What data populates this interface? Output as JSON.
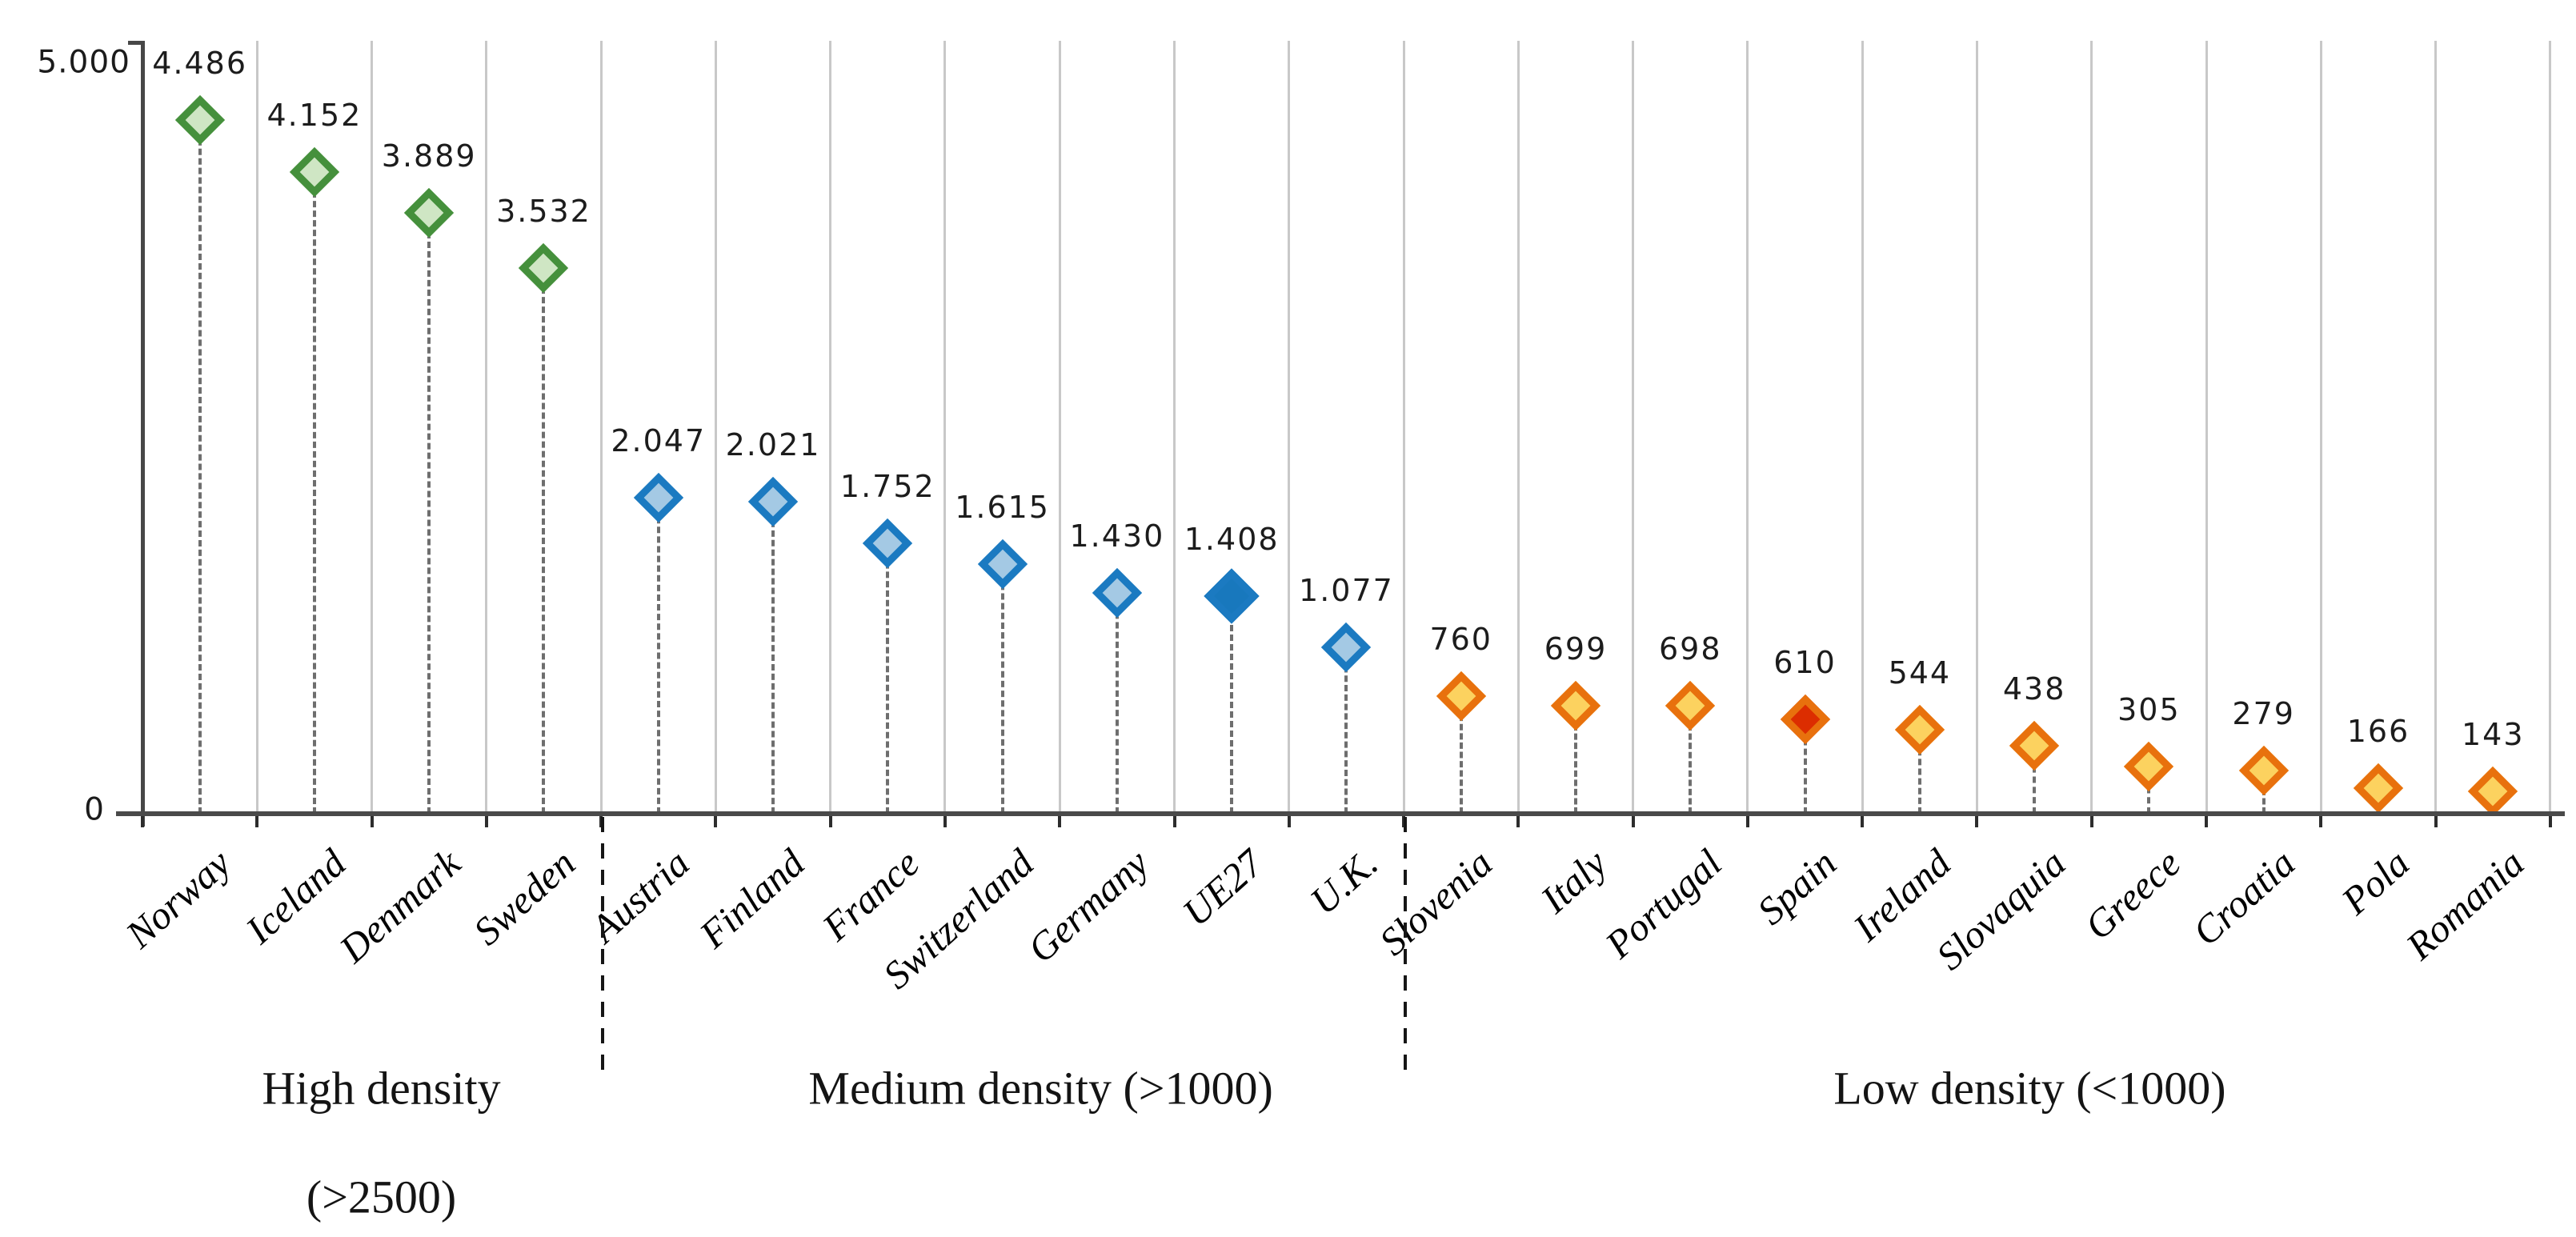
{
  "chart_data": {
    "type": "scatter",
    "title": "",
    "xlabel": "",
    "ylabel": "",
    "ylim": [
      0,
      5000
    ],
    "grid": true,
    "legend": "none",
    "y_axis_ticks": [
      {
        "label": "5.000",
        "value": 5000
      },
      {
        "label": "0",
        "value": 0
      }
    ],
    "points": [
      {
        "country": "Norway",
        "label": "4.486",
        "value": 4486,
        "group": "high",
        "variant": "outline"
      },
      {
        "country": "Iceland",
        "label": "4.152",
        "value": 4152,
        "group": "high",
        "variant": "outline"
      },
      {
        "country": "Denmark",
        "label": "3.889",
        "value": 3889,
        "group": "high",
        "variant": "outline"
      },
      {
        "country": "Sweden",
        "label": "3.532",
        "value": 3532,
        "group": "high",
        "variant": "outline"
      },
      {
        "country": "Austria",
        "label": "2.047",
        "value": 2047,
        "group": "medium",
        "variant": "outline"
      },
      {
        "country": "Finland",
        "label": "2.021",
        "value": 2021,
        "group": "medium",
        "variant": "outline"
      },
      {
        "country": "France",
        "label": "1.752",
        "value": 1752,
        "group": "medium",
        "variant": "outline"
      },
      {
        "country": "Switzerland",
        "label": "1.615",
        "value": 1615,
        "group": "medium",
        "variant": "outline"
      },
      {
        "country": "Germany",
        "label": "1.430",
        "value": 1430,
        "group": "medium",
        "variant": "outline"
      },
      {
        "country": "UE27",
        "label": "1.408",
        "value": 1408,
        "group": "medium",
        "variant": "solid"
      },
      {
        "country": "U.K.",
        "label": "1.077",
        "value": 1077,
        "group": "medium",
        "variant": "outline"
      },
      {
        "country": "Slovenia",
        "label": "760",
        "value": 760,
        "group": "low",
        "variant": "outline"
      },
      {
        "country": "Italy",
        "label": "699",
        "value": 699,
        "group": "low",
        "variant": "outline"
      },
      {
        "country": "Portugal",
        "label": "698",
        "value": 698,
        "group": "low",
        "variant": "outline"
      },
      {
        "country": "Spain",
        "label": "610",
        "value": 610,
        "group": "low",
        "variant": "red"
      },
      {
        "country": "Ireland",
        "label": "544",
        "value": 544,
        "group": "low",
        "variant": "outline"
      },
      {
        "country": "Slovaquia",
        "label": "438",
        "value": 438,
        "group": "low",
        "variant": "outline"
      },
      {
        "country": "Greece",
        "label": "305",
        "value": 305,
        "group": "low",
        "variant": "outline"
      },
      {
        "country": "Croatia",
        "label": "279",
        "value": 279,
        "group": "low",
        "variant": "outline"
      },
      {
        "country": "Pola",
        "label": "166",
        "value": 166,
        "group": "low",
        "variant": "outline"
      },
      {
        "country": "Romania",
        "label": "143",
        "value": 143,
        "group": "low",
        "variant": "outline"
      }
    ],
    "groups": [
      {
        "id": "high",
        "label": "High density",
        "sublabel": "(>2500)",
        "marker_border": "#45903c",
        "marker_fill": "#cfe6c4",
        "first_index": 0,
        "last_index": 3
      },
      {
        "id": "medium",
        "label": "Medium density (>1000)",
        "sublabel": "",
        "marker_border": "#1b7ac1",
        "marker_fill": "#a4c9e4",
        "first_index": 4,
        "last_index": 10
      },
      {
        "id": "low",
        "label": "Low density (<1000)",
        "sublabel": "",
        "marker_border": "#e8710d",
        "marker_fill": "#fcd25f",
        "first_index": 11,
        "last_index": 20
      }
    ],
    "special_marker_colors": {
      "solid_fill": "#1878bd",
      "red_fill": "#dc2d00"
    },
    "separators_after": [
      "Sweden",
      "U.K."
    ]
  }
}
